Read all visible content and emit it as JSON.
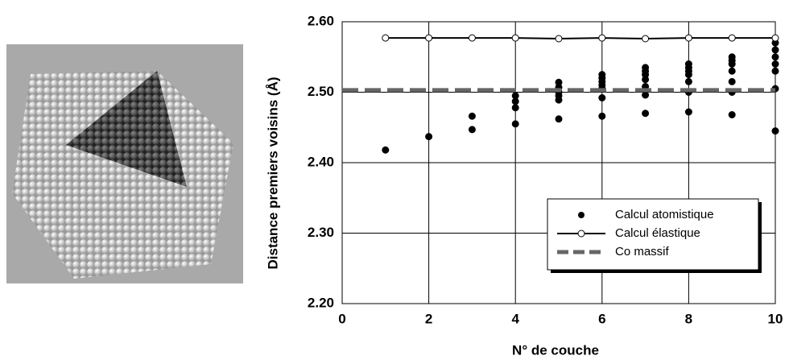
{
  "chart_data": {
    "type": "scatter",
    "xlabel": "N° de couche",
    "ylabel": "Distance premiers voisins (Å)",
    "xlim": [
      0,
      10
    ],
    "xticks": [
      0,
      2,
      4,
      6,
      8,
      10
    ],
    "ylim": [
      2.2,
      2.6
    ],
    "yticks": [
      {
        "value": 2.2,
        "label": "2.20"
      },
      {
        "value": 2.3,
        "label": "2.30"
      },
      {
        "value": 2.4,
        "label": "2.40"
      },
      {
        "value": 2.5,
        "label": "2.50"
      },
      {
        "value": 2.6,
        "label": "2.60"
      }
    ],
    "grid": true,
    "legend": "lower right",
    "series": [
      {
        "name": "Calcul atomistique",
        "color": "#000000",
        "style": "markers",
        "x": [
          1,
          2,
          3,
          3,
          4,
          4,
          4,
          4,
          5,
          5,
          5,
          5,
          5,
          5,
          6,
          6,
          6,
          6,
          6,
          6,
          6,
          7,
          7,
          7,
          7,
          7,
          7,
          7,
          8,
          8,
          8,
          8,
          8,
          8,
          8,
          9,
          9,
          9,
          9,
          9,
          9,
          9,
          10,
          10,
          10,
          10,
          10,
          10,
          10
        ],
        "values": [
          2.418,
          2.437,
          2.447,
          2.466,
          2.455,
          2.478,
          2.487,
          2.495,
          2.462,
          2.489,
          2.495,
          2.5,
          2.507,
          2.514,
          2.466,
          2.492,
          2.505,
          2.51,
          2.515,
          2.52,
          2.525,
          2.47,
          2.496,
          2.508,
          2.518,
          2.525,
          2.53,
          2.535,
          2.472,
          2.5,
          2.515,
          2.525,
          2.53,
          2.535,
          2.54,
          2.468,
          2.5,
          2.515,
          2.53,
          2.54,
          2.545,
          2.55,
          2.445,
          2.505,
          2.53,
          2.54,
          2.55,
          2.56,
          2.57
        ]
      },
      {
        "name": "Calcul élastique",
        "color": "#000000",
        "style": "line+open-markers",
        "x": [
          1,
          2,
          3,
          4,
          5,
          6,
          7,
          8,
          9,
          10
        ],
        "values": [
          2.577,
          2.577,
          2.577,
          2.577,
          2.576,
          2.577,
          2.576,
          2.577,
          2.577,
          2.577
        ]
      },
      {
        "name": "Co massif",
        "color": "#666666",
        "style": "dashed",
        "x": [
          0,
          10
        ],
        "values": [
          2.503,
          2.503
        ]
      }
    ]
  }
}
